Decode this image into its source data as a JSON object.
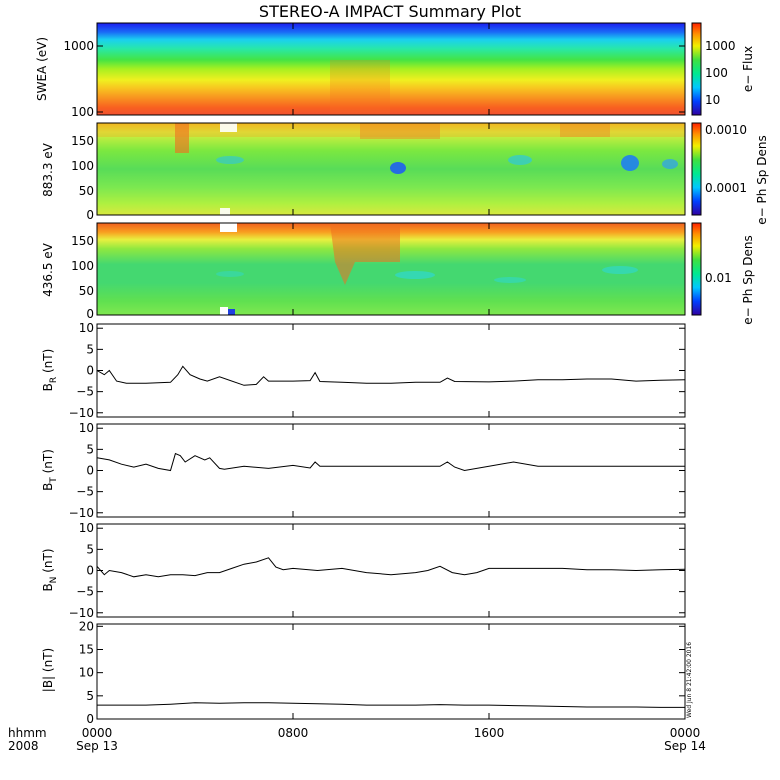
{
  "chart_data": {
    "title": "STEREO-A IMPACT Summary Plot",
    "type": "heatmap+line",
    "x_axis": {
      "range_hours": [
        0,
        24
      ],
      "tick_labels": [
        "0000",
        "0800",
        "1600",
        "0000"
      ],
      "tick_hours": [
        0,
        8,
        16,
        24
      ],
      "date_labels": [
        "Sep 13",
        "",
        "",
        "Sep 14"
      ],
      "left_labels": [
        "hhmm",
        "2008"
      ]
    },
    "panels": [
      {
        "id": "swea",
        "type": "heatmap",
        "ylabel": "SWEA (eV)",
        "yscale": "log",
        "ylim": [
          100,
          2000
        ],
        "yticks": [
          "100",
          "1000"
        ],
        "ytick_values": [
          100,
          1000
        ],
        "colorbar_label": "e− Flux",
        "colorbar_ticks": [
          "10",
          "100",
          "1000"
        ],
        "colorbar_values": [
          10,
          100,
          1000
        ]
      },
      {
        "id": "pad883",
        "type": "heatmap",
        "ylabel": "883.3 eV",
        "ylim": [
          0,
          180
        ],
        "yticks": [
          "0",
          "50",
          "100",
          "150"
        ],
        "ytick_values": [
          0,
          50,
          100,
          150
        ],
        "colorbar_label": "e− Ph Sp Dens",
        "colorbar_ticks": [
          "0.0001",
          "0.0010"
        ],
        "colorbar_values": [
          0.0001,
          0.001
        ]
      },
      {
        "id": "pad436",
        "type": "heatmap",
        "ylabel": "436.5 eV",
        "ylim": [
          0,
          180
        ],
        "yticks": [
          "0",
          "50",
          "100",
          "150"
        ],
        "ytick_values": [
          0,
          50,
          100,
          150
        ],
        "colorbar_label": "e− Ph Sp Dens",
        "colorbar_ticks": [
          "0.01"
        ],
        "colorbar_values": [
          0.01
        ]
      },
      {
        "id": "br",
        "type": "line",
        "ylabel_main": "B",
        "ylabel_sub": "R",
        "ylabel_unit": " (nT)",
        "ylim": [
          -11,
          11
        ],
        "yticks": [
          "−10",
          "−5",
          "0",
          "5",
          "10"
        ],
        "ytick_values": [
          -10,
          -5,
          0,
          5,
          10
        ],
        "series": {
          "x_hours": [
            0,
            0.3,
            0.5,
            0.8,
            1.2,
            2,
            3,
            3.3,
            3.5,
            3.8,
            4.2,
            4.5,
            5,
            6,
            6.5,
            6.8,
            7,
            8,
            8.7,
            8.9,
            9.1,
            10,
            11,
            12,
            13,
            14,
            14.3,
            14.6,
            16,
            17,
            18,
            19,
            20,
            21,
            22,
            23,
            24
          ],
          "values": [
            0,
            -1,
            0,
            -2.5,
            -3,
            -3,
            -2.8,
            -1,
            1,
            -1,
            -2,
            -2.5,
            -1.5,
            -3.5,
            -3.3,
            -1.5,
            -2.5,
            -2.5,
            -2.4,
            -0.5,
            -2.6,
            -2.8,
            -3,
            -3,
            -2.8,
            -2.8,
            -1.8,
            -2.6,
            -2.7,
            -2.5,
            -2.2,
            -2.2,
            -2,
            -2,
            -2.5,
            -2.3,
            -2.2
          ]
        }
      },
      {
        "id": "bt",
        "type": "line",
        "ylabel_main": "B",
        "ylabel_sub": "T",
        "ylabel_unit": " (nT)",
        "ylim": [
          -11,
          11
        ],
        "yticks": [
          "−10",
          "−5",
          "0",
          "5",
          "10"
        ],
        "ytick_values": [
          -10,
          -5,
          0,
          5,
          10
        ],
        "series": {
          "x_hours": [
            0,
            0.5,
            1,
            1.5,
            2,
            2.5,
            3,
            3.2,
            3.4,
            3.6,
            4,
            4.4,
            4.6,
            5,
            5.2,
            6,
            7,
            8,
            8.7,
            8.9,
            9.1,
            10,
            11,
            12,
            13,
            14,
            14.3,
            14.6,
            15,
            16,
            17,
            18,
            19,
            20,
            21,
            22,
            23,
            24
          ],
          "values": [
            3,
            2.5,
            1.5,
            0.8,
            1.5,
            0.5,
            0,
            4,
            3.5,
            2,
            3.5,
            2.5,
            3,
            0.5,
            0.3,
            1,
            0.5,
            1.2,
            0.6,
            2,
            1,
            1,
            1,
            1,
            1,
            1,
            2,
            0.8,
            0,
            1,
            2,
            1,
            1,
            1,
            1,
            1,
            1,
            1
          ]
        }
      },
      {
        "id": "bn",
        "type": "line",
        "ylabel_main": "B",
        "ylabel_sub": "N",
        "ylabel_unit": " (nT)",
        "ylim": [
          -11,
          11
        ],
        "yticks": [
          "−10",
          "−5",
          "0",
          "5",
          "10"
        ],
        "ytick_values": [
          -10,
          -5,
          0,
          5,
          10
        ],
        "series": {
          "x_hours": [
            0,
            0.3,
            0.5,
            1,
            1.5,
            2,
            2.5,
            3,
            3.5,
            4,
            4.5,
            5,
            5.5,
            6,
            6.5,
            7,
            7.3,
            7.6,
            8,
            9,
            10,
            11,
            12,
            13,
            13.5,
            14,
            14.5,
            15,
            15.5,
            16,
            16.5,
            17,
            18,
            19,
            20,
            21,
            22,
            23,
            24
          ],
          "values": [
            1,
            -1,
            0,
            -0.5,
            -1.5,
            -1,
            -1.5,
            -1,
            -1,
            -1.2,
            -0.5,
            -0.5,
            0.5,
            1.5,
            2,
            3,
            0.8,
            0.2,
            0.5,
            0,
            0.5,
            -0.5,
            -1,
            -0.5,
            0,
            1,
            -0.5,
            -1,
            -0.5,
            0.5,
            0.5,
            0.5,
            0.5,
            0.5,
            0.2,
            0.2,
            0,
            0.2,
            0.3
          ]
        }
      },
      {
        "id": "bmag",
        "type": "line",
        "ylabel_main": "|B| (nT)",
        "ylim": [
          0,
          20.5
        ],
        "yticks": [
          "0",
          "5",
          "10",
          "15",
          "20"
        ],
        "ytick_values": [
          0,
          5,
          10,
          15,
          20
        ],
        "side_note": "Wed Jun 8 21:42:00 2016",
        "series": {
          "x_hours": [
            0,
            1,
            2,
            3,
            4,
            5,
            6,
            7,
            8,
            9,
            10,
            11,
            12,
            13,
            14,
            15,
            16,
            17,
            18,
            19,
            20,
            21,
            22,
            23,
            24
          ],
          "values": [
            3,
            3,
            3,
            3.2,
            3.5,
            3.4,
            3.5,
            3.5,
            3.4,
            3.3,
            3.2,
            3,
            3,
            3,
            3.1,
            3,
            3,
            2.9,
            2.8,
            2.7,
            2.6,
            2.6,
            2.6,
            2.5,
            2.5
          ]
        }
      }
    ]
  }
}
